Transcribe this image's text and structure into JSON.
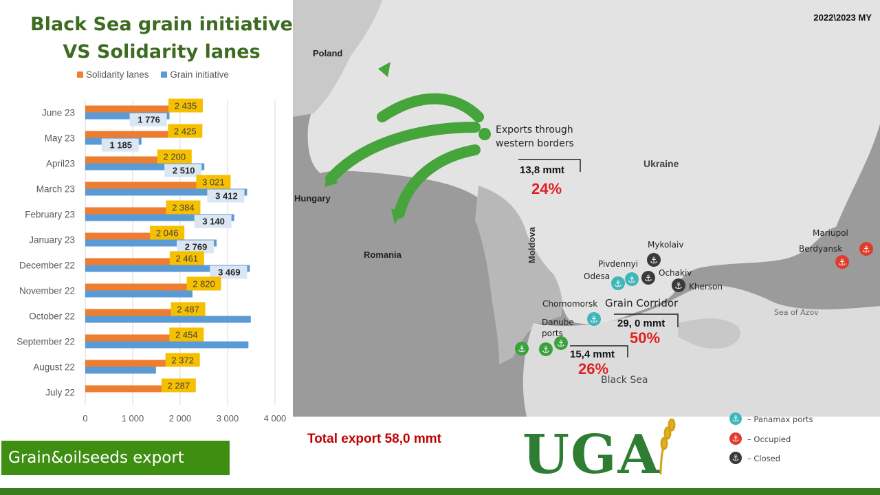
{
  "title_line1": "Black Sea grain initiative",
  "title_line2": "VS Solidarity lanes",
  "period": "2022\\2023 MY",
  "badge": "Grain&oilseeds export",
  "total_export": "Total export 58,0 mmt",
  "map": {
    "labels": {
      "poland": "Poland",
      "hungary": "Hungary",
      "romania": "Romania",
      "moldova": "Moldova",
      "ukraine": "Ukraine",
      "exports_line1": "Exports through",
      "exports_line2": "western borders",
      "western_value": "13,8 mmt",
      "western_pct": "24%",
      "mykolaiv": "Mykolaiv",
      "pivdennyi": "Pivdennyi",
      "odesa": "Odesa",
      "ochakiv": "Ochakiv",
      "kherson": "Kherson",
      "chornomorsk": "Chornomorsk",
      "grain_corridor": "Grain Corridor",
      "corridor_value": "29, 0 mmt",
      "corridor_pct": "50%",
      "danube1": "Danube",
      "danube2": "ports",
      "danube_value": "15,4 mmt",
      "danube_pct": "26%",
      "black_sea": "Black Sea",
      "sea_of_azov": "Sea of Azov",
      "mariupol": "Mariupol",
      "berdyansk": "Berdyansk"
    },
    "legend": {
      "panamax": "– Panamax ports",
      "occupied": "– Occupied",
      "closed": "– Closed"
    },
    "logo": "UGA",
    "colors": {
      "panamax": "#3fb6b8",
      "occupied": "#e03c2e",
      "closed": "#3a3a3a",
      "danube": "#3aa13d",
      "arrow": "#45a53a"
    }
  },
  "chart_data": {
    "type": "bar",
    "orientation": "horizontal",
    "categories": [
      "June 23",
      "May 23",
      "April23",
      "March 23",
      "February 23",
      "January 23",
      "December 22",
      "November 22",
      "October 22",
      "September 22",
      "August 22",
      "July 22"
    ],
    "series": [
      {
        "name": "Solidarity lanes",
        "color": "#ed7d31",
        "values": [
          2435,
          2425,
          2200,
          3021,
          2384,
          2046,
          2461,
          2820,
          2487,
          2454,
          2372,
          2287
        ],
        "labels": [
          "2 435",
          "2 425",
          "2 200",
          "3 021",
          "2 384",
          "2 046",
          "2 461",
          "2 820",
          "2 487",
          "2 454",
          "2 372",
          "2 287"
        ]
      },
      {
        "name": "Grain initiative",
        "color": "#5b9bd5",
        "values": [
          1776,
          1185,
          2510,
          3412,
          3140,
          2769,
          3469,
          2260,
          3490,
          3440,
          1490,
          0
        ],
        "labels": [
          "1 776",
          "1 185",
          "2 510",
          "3 412",
          "3 140",
          "2 769",
          "3 469",
          "",
          "",
          "",
          "",
          ""
        ]
      }
    ],
    "x_ticks": [
      "0",
      "1 000",
      "2 000",
      "3 000",
      "4 000"
    ],
    "xlim": [
      0,
      4000
    ],
    "grid": true,
    "legend": "top"
  }
}
